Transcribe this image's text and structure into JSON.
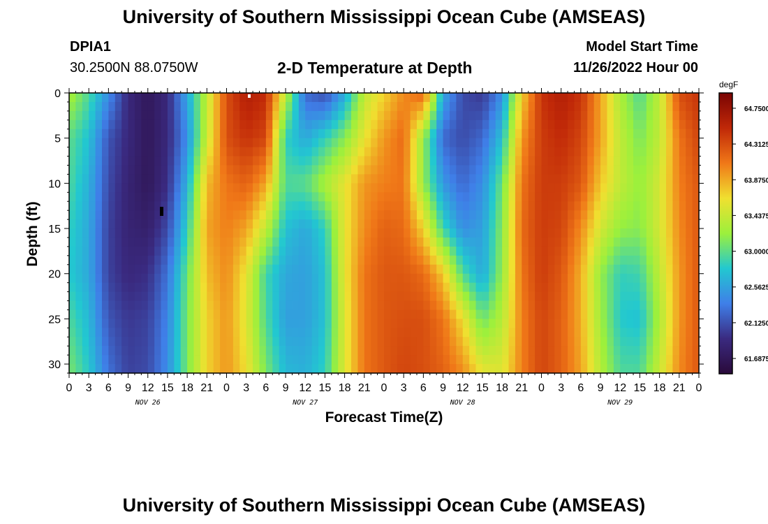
{
  "header": {
    "title": "University of Southern Mississippi Ocean Cube (AMSEAS)",
    "station_id": "DPIA1",
    "coords": "30.2500N  88.0750W",
    "plot_title": "2-D Temperature at Depth",
    "model_start_label": "Model Start Time",
    "model_start_value": "11/26/2022 Hour 00"
  },
  "footer": {
    "title": "University of Southern Mississippi Ocean Cube (AMSEAS)"
  },
  "colors": {
    "scale": [
      "#2a0a3a",
      "#3a2a80",
      "#3f7fe8",
      "#22c8d0",
      "#9cf03c",
      "#f0e030",
      "#f07818",
      "#c02808",
      "#7a0403"
    ]
  },
  "chart_data": {
    "type": "heatmap",
    "title": "2-D Temperature at Depth",
    "xlabel": "Forecast Time(Z)",
    "ylabel": "Depth (ft)",
    "x_tick_labels": [
      "0",
      "3",
      "6",
      "9",
      "12",
      "15",
      "18",
      "21",
      "0",
      "3",
      "6",
      "9",
      "12",
      "15",
      "18",
      "21",
      "0",
      "3",
      "6",
      "9",
      "12",
      "15",
      "18",
      "21",
      "0",
      "3",
      "6",
      "9",
      "12",
      "15",
      "18",
      "21",
      "0"
    ],
    "day_labels": [
      {
        "label": "NOV 26",
        "hour": 9
      },
      {
        "label": "NOV 27",
        "hour": 33
      },
      {
        "label": "NOV 28",
        "hour": 57
      },
      {
        "label": "NOV 29",
        "hour": 81
      }
    ],
    "xlim_hours": [
      0,
      96
    ],
    "ylim_ft": [
      0,
      31
    ],
    "y_ticks": [
      0,
      5,
      10,
      15,
      20,
      25,
      30
    ],
    "y_tick_labels": [
      "0",
      "5",
      "10",
      "15",
      "20",
      "25",
      "30"
    ],
    "colorbar": {
      "unit": "degF",
      "min": 61.5,
      "max": 64.9375,
      "tick_values": [
        64.75,
        64.3125,
        63.875,
        63.4375,
        63.0,
        62.5625,
        62.125,
        61.6875
      ],
      "tick_labels": [
        "64.7500",
        "64.3125",
        "63.8750",
        "63.4375",
        "63.0000",
        "62.5625",
        "62.1250",
        "61.6875"
      ]
    },
    "z_degF_by_depth": {
      "hours": [
        0,
        3,
        6,
        9,
        12,
        15,
        18,
        21,
        24,
        27,
        30,
        33,
        36,
        39,
        42,
        45,
        48,
        51,
        54,
        57,
        60,
        63,
        66,
        69,
        72,
        75,
        78,
        81,
        84,
        87,
        90,
        93,
        96
      ],
      "depths_ft": [
        0,
        5,
        10,
        15,
        20,
        25,
        31
      ],
      "values": [
        [
          63.3,
          62.95,
          62.45,
          61.9,
          61.7,
          61.9,
          62.6,
          63.4,
          64.3,
          64.6,
          64.5,
          63.4,
          62.25,
          62.1,
          62.6,
          63.4,
          63.7,
          64.0,
          64.2,
          62.6,
          62.1,
          62.0,
          62.45,
          63.7,
          64.45,
          64.6,
          64.45,
          63.9,
          63.3,
          62.95,
          63.4,
          64.3,
          64.45
        ],
        [
          63.0,
          62.75,
          62.15,
          61.9,
          61.7,
          61.9,
          62.45,
          63.45,
          64.3,
          64.45,
          64.35,
          62.85,
          62.6,
          62.85,
          63.15,
          63.6,
          63.95,
          64.15,
          63.2,
          62.25,
          62.1,
          62.25,
          62.75,
          63.95,
          64.4,
          64.5,
          64.35,
          63.9,
          63.4,
          63.1,
          63.4,
          64.1,
          64.35
        ],
        [
          62.95,
          62.65,
          62.1,
          61.85,
          61.7,
          61.95,
          62.65,
          63.8,
          64.1,
          64.2,
          63.9,
          62.95,
          63.0,
          63.3,
          63.6,
          63.95,
          64.05,
          64.1,
          63.2,
          62.5,
          62.25,
          62.45,
          63.05,
          64.1,
          64.4,
          64.4,
          64.25,
          63.75,
          63.4,
          63.2,
          63.5,
          64.05,
          64.25
        ],
        [
          62.85,
          62.6,
          62.05,
          61.85,
          61.8,
          62.1,
          62.85,
          63.9,
          64.05,
          63.9,
          63.4,
          62.75,
          62.6,
          62.85,
          63.6,
          64.0,
          64.2,
          64.15,
          63.7,
          62.9,
          62.45,
          62.55,
          63.15,
          64.15,
          64.4,
          64.35,
          64.0,
          63.5,
          63.2,
          63.15,
          63.5,
          64.0,
          64.25
        ],
        [
          62.8,
          62.6,
          62.05,
          61.9,
          61.95,
          62.3,
          63.05,
          63.8,
          64.0,
          63.6,
          62.9,
          62.6,
          62.55,
          62.75,
          63.6,
          64.1,
          64.25,
          64.25,
          64.15,
          63.75,
          62.95,
          62.6,
          63.2,
          64.1,
          64.4,
          64.25,
          63.85,
          63.2,
          62.85,
          62.9,
          63.4,
          63.95,
          64.25
        ],
        [
          62.95,
          62.7,
          62.15,
          62.0,
          62.05,
          62.4,
          63.1,
          63.7,
          63.95,
          63.55,
          62.95,
          62.55,
          62.55,
          62.75,
          63.55,
          64.1,
          64.25,
          64.3,
          64.3,
          64.1,
          63.65,
          63.05,
          63.35,
          64.05,
          64.35,
          64.2,
          63.85,
          63.25,
          62.8,
          62.75,
          63.3,
          63.95,
          64.25
        ],
        [
          63.1,
          62.8,
          62.3,
          62.05,
          62.1,
          62.45,
          63.1,
          63.7,
          63.95,
          63.65,
          63.1,
          62.7,
          62.65,
          62.85,
          63.55,
          64.1,
          64.25,
          64.35,
          64.3,
          64.2,
          64.0,
          63.6,
          63.55,
          64.05,
          64.35,
          64.2,
          63.9,
          63.35,
          62.95,
          62.95,
          63.45,
          64.0,
          64.25
        ]
      ]
    }
  }
}
